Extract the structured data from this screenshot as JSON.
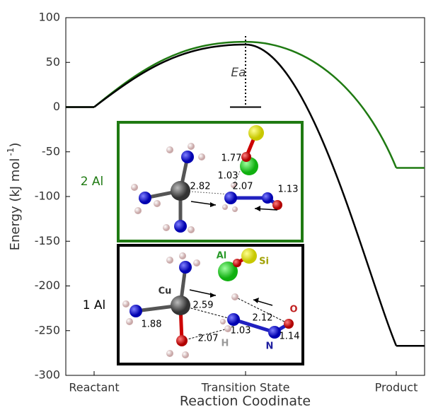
{
  "chart_data": {
    "type": "line",
    "ylabel": {
      "text": "Energy (kJ mol",
      "sup": "-1",
      "close": ")"
    },
    "xlabel": "Reaction Coodinate",
    "categories": [
      "Reactant",
      "Transition State",
      "Product"
    ],
    "series": [
      {
        "name": "1 Al",
        "color": "#000000",
        "values": [
          0,
          70,
          -267
        ]
      },
      {
        "name": "2 Al",
        "color": "#1f7a12",
        "values": [
          0,
          73,
          -68
        ]
      }
    ],
    "ylim": [
      -300,
      100
    ],
    "yticks": [
      -300,
      -250,
      -200,
      -150,
      -100,
      -50,
      0,
      50,
      100
    ],
    "annotation": "Ea",
    "insets": [
      {
        "bond_labels": [
          "1.77",
          "1.03",
          "2.82",
          "2.07",
          "1.13"
        ]
      },
      {
        "atom_labels": [
          "Al",
          "Si",
          "Cu",
          "O",
          "H",
          "N"
        ],
        "bond_labels": [
          "2.59",
          "2.12",
          "1.88",
          "1.03",
          "2.07",
          "1.14"
        ]
      }
    ]
  }
}
